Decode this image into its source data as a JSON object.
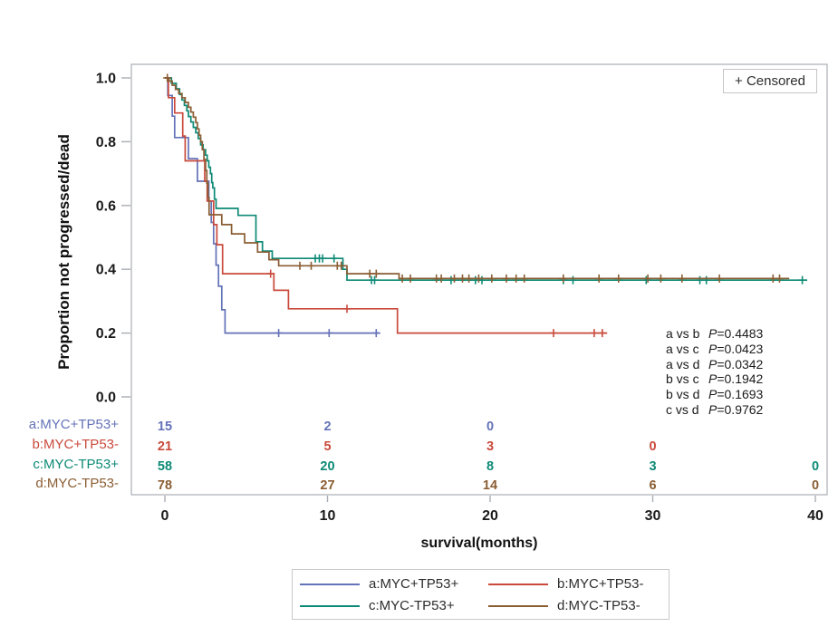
{
  "chart_data": {
    "type": "line",
    "subtype": "kaplan-meier-step",
    "title": "",
    "xlabel": "survival(months)",
    "ylabel": "Proportion not progressed/dead",
    "xlim": [
      0,
      40
    ],
    "ylim": [
      0.0,
      1.0
    ],
    "xticks": [
      0,
      10,
      20,
      30,
      40
    ],
    "yticks": [
      0.0,
      0.2,
      0.4,
      0.6,
      0.8,
      1.0
    ],
    "xtick_labels": [
      "0",
      "10",
      "20",
      "30",
      "40"
    ],
    "ytick_labels": [
      "0.0",
      "0.2",
      "0.4",
      "0.6",
      "0.8",
      "1.0"
    ],
    "grid": "off",
    "censored_label": "+ Censored",
    "at_risk_times": [
      0,
      10,
      20,
      30,
      40
    ],
    "series": [
      {
        "id": "a",
        "name": "a:MYC+TP53+",
        "color": "#6472b8",
        "steps": [
          [
            0,
            1.0
          ],
          [
            0.18,
            0.945
          ],
          [
            0.45,
            0.88
          ],
          [
            0.6,
            0.813
          ],
          [
            1.45,
            0.747
          ],
          [
            2.0,
            0.676
          ],
          [
            2.7,
            0.614
          ],
          [
            2.85,
            0.547
          ],
          [
            3.0,
            0.48
          ],
          [
            3.15,
            0.413
          ],
          [
            3.3,
            0.347
          ],
          [
            3.5,
            0.273
          ],
          [
            3.7,
            0.2
          ]
        ],
        "end": 13.2,
        "censors": [
          [
            7.0,
            0.2
          ],
          [
            10.1,
            0.2
          ],
          [
            13.0,
            0.2
          ]
        ],
        "at_risk": [
          15,
          2,
          0,
          null,
          null
        ]
      },
      {
        "id": "b",
        "name": "b:MYC+TP53-",
        "color": "#c94a3c",
        "steps": [
          [
            0,
            1.0
          ],
          [
            0.22,
            0.938
          ],
          [
            0.6,
            0.89
          ],
          [
            1.1,
            0.818
          ],
          [
            1.25,
            0.74
          ],
          [
            2.45,
            0.676
          ],
          [
            2.6,
            0.614
          ],
          [
            3.0,
            0.54
          ],
          [
            3.2,
            0.477
          ],
          [
            3.55,
            0.386
          ],
          [
            6.7,
            0.334
          ],
          [
            7.6,
            0.276
          ],
          [
            14.3,
            0.2
          ]
        ],
        "end": 27.2,
        "censors": [
          [
            6.5,
            0.386
          ],
          [
            11.2,
            0.276
          ],
          [
            23.9,
            0.2
          ],
          [
            26.4,
            0.2
          ],
          [
            26.9,
            0.2
          ]
        ],
        "at_risk": [
          21,
          5,
          3,
          0,
          null
        ]
      },
      {
        "id": "c",
        "name": "c:MYC-TP53+",
        "color": "#0d8a76",
        "steps": [
          [
            0,
            1.0
          ],
          [
            0.4,
            0.983
          ],
          [
            0.7,
            0.966
          ],
          [
            0.9,
            0.948
          ],
          [
            1.05,
            0.931
          ],
          [
            1.2,
            0.914
          ],
          [
            1.35,
            0.897
          ],
          [
            1.45,
            0.879
          ],
          [
            1.6,
            0.862
          ],
          [
            1.75,
            0.845
          ],
          [
            1.9,
            0.828
          ],
          [
            2.05,
            0.81
          ],
          [
            2.2,
            0.79
          ],
          [
            2.35,
            0.775
          ],
          [
            2.5,
            0.758
          ],
          [
            2.6,
            0.74
          ],
          [
            2.7,
            0.72
          ],
          [
            2.8,
            0.7
          ],
          [
            2.88,
            0.672
          ],
          [
            2.95,
            0.655
          ],
          [
            3.05,
            0.62
          ],
          [
            3.15,
            0.591
          ],
          [
            4.5,
            0.569
          ],
          [
            5.6,
            0.486
          ],
          [
            6.0,
            0.457
          ],
          [
            6.6,
            0.434
          ],
          [
            10.95,
            0.4
          ],
          [
            11.2,
            0.366
          ]
        ],
        "end": 39.5,
        "censors": [
          [
            9.25,
            0.434
          ],
          [
            9.5,
            0.434
          ],
          [
            9.7,
            0.434
          ],
          [
            10.4,
            0.434
          ],
          [
            12.7,
            0.366
          ],
          [
            12.9,
            0.366
          ],
          [
            17.6,
            0.366
          ],
          [
            19.1,
            0.366
          ],
          [
            19.5,
            0.366
          ],
          [
            24.5,
            0.366
          ],
          [
            25.1,
            0.366
          ],
          [
            29.6,
            0.366
          ],
          [
            32.9,
            0.366
          ],
          [
            33.3,
            0.366
          ],
          [
            39.2,
            0.366
          ]
        ],
        "at_risk": [
          58,
          20,
          8,
          3,
          0
        ]
      },
      {
        "id": "d",
        "name": "d:MYC-TP53-",
        "color": "#8a5d33",
        "steps": [
          [
            0,
            1.0
          ],
          [
            0.25,
            0.99
          ],
          [
            0.45,
            0.977
          ],
          [
            0.65,
            0.964
          ],
          [
            0.85,
            0.951
          ],
          [
            1.05,
            0.938
          ],
          [
            1.25,
            0.923
          ],
          [
            1.45,
            0.908
          ],
          [
            1.6,
            0.893
          ],
          [
            1.75,
            0.877
          ],
          [
            1.9,
            0.86
          ],
          [
            2.0,
            0.84
          ],
          [
            2.1,
            0.82
          ],
          [
            2.2,
            0.8
          ],
          [
            2.3,
            0.775
          ],
          [
            2.4,
            0.745
          ],
          [
            2.5,
            0.71
          ],
          [
            2.58,
            0.67
          ],
          [
            2.65,
            0.625
          ],
          [
            2.72,
            0.571
          ],
          [
            3.5,
            0.54
          ],
          [
            4.1,
            0.511
          ],
          [
            4.9,
            0.483
          ],
          [
            5.7,
            0.454
          ],
          [
            6.4,
            0.43
          ],
          [
            7.0,
            0.411
          ],
          [
            11.2,
            0.386
          ],
          [
            14.4,
            0.371
          ]
        ],
        "end": 38.4,
        "censors": [
          [
            0.15,
            1.0
          ],
          [
            8.3,
            0.411
          ],
          [
            9.0,
            0.411
          ],
          [
            10.6,
            0.411
          ],
          [
            10.85,
            0.411
          ],
          [
            12.6,
            0.386
          ],
          [
            13.0,
            0.386
          ],
          [
            14.6,
            0.371
          ],
          [
            15.1,
            0.371
          ],
          [
            16.7,
            0.371
          ],
          [
            17.0,
            0.371
          ],
          [
            17.8,
            0.371
          ],
          [
            18.3,
            0.371
          ],
          [
            18.7,
            0.371
          ],
          [
            19.3,
            0.371
          ],
          [
            20.1,
            0.371
          ],
          [
            21.0,
            0.371
          ],
          [
            21.6,
            0.371
          ],
          [
            22.1,
            0.371
          ],
          [
            24.5,
            0.371
          ],
          [
            26.7,
            0.371
          ],
          [
            27.9,
            0.371
          ],
          [
            29.7,
            0.371
          ],
          [
            30.5,
            0.371
          ],
          [
            31.8,
            0.371
          ],
          [
            34.1,
            0.371
          ],
          [
            37.4,
            0.371
          ],
          [
            37.8,
            0.371
          ]
        ],
        "at_risk": [
          78,
          27,
          14,
          6,
          0
        ]
      }
    ],
    "pvalues": [
      {
        "pair": "a vs b",
        "psym": "P",
        "pval": "=0.4483"
      },
      {
        "pair": "a vs c",
        "psym": "P",
        "pval": "=0.0423"
      },
      {
        "pair": "a vs d",
        "psym": "P",
        "pval": "=0.0342"
      },
      {
        "pair": "b vs c",
        "psym": "P",
        "pval": "=0.1942"
      },
      {
        "pair": "b vs d",
        "psym": "P",
        "pval": "=0.1693"
      },
      {
        "pair": "c vs d",
        "psym": "P",
        "pval": "=0.9762"
      }
    ]
  }
}
